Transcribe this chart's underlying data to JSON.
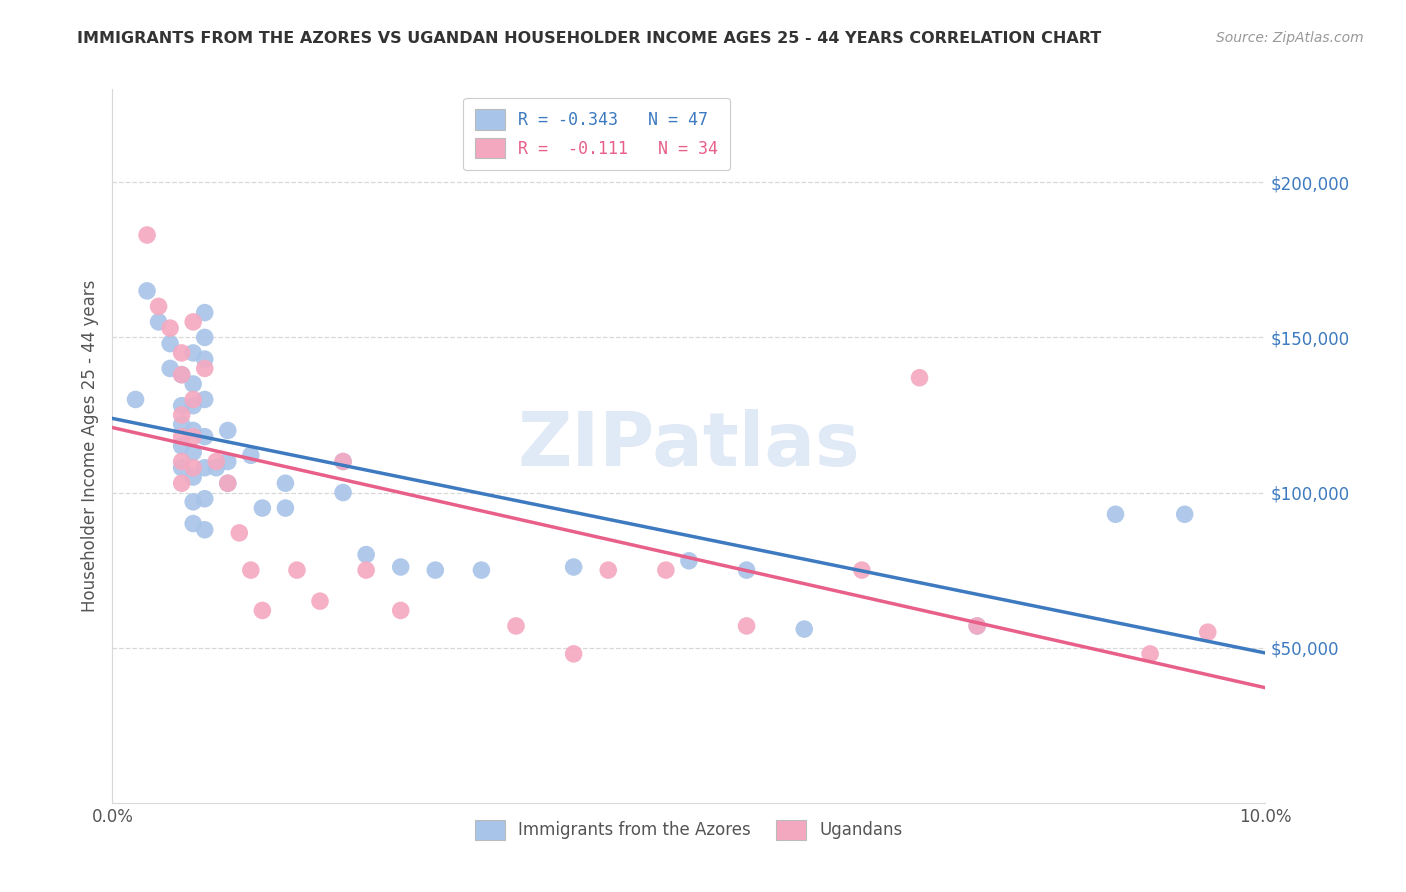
{
  "title": "IMMIGRANTS FROM THE AZORES VS UGANDAN HOUSEHOLDER INCOME AGES 25 - 44 YEARS CORRELATION CHART",
  "source": "Source: ZipAtlas.com",
  "ylabel": "Householder Income Ages 25 - 44 years",
  "xlim": [
    0,
    0.1
  ],
  "ylim": [
    0,
    230000
  ],
  "yticks_right": [
    50000,
    100000,
    150000,
    200000
  ],
  "ytick_labels_right": [
    "$50,000",
    "$100,000",
    "$150,000",
    "$200,000"
  ],
  "legend_blue_label": "R = -0.343   N = 47",
  "legend_pink_label": "R =  -0.111   N = 34",
  "watermark": "ZIPatlas",
  "blue_color": "#a8c4e8",
  "pink_color": "#f4a8c0",
  "blue_line_color": "#3d7abf",
  "pink_line_color": "#e8608a",
  "title_color": "#333333",
  "source_color": "#999999",
  "label_color": "#555555",
  "grid_color": "#d8d8d8",
  "blue_scatter": [
    [
      0.002,
      130000
    ],
    [
      0.003,
      165000
    ],
    [
      0.004,
      155000
    ],
    [
      0.005,
      148000
    ],
    [
      0.005,
      140000
    ],
    [
      0.006,
      138000
    ],
    [
      0.006,
      128000
    ],
    [
      0.006,
      122000
    ],
    [
      0.006,
      115000
    ],
    [
      0.006,
      108000
    ],
    [
      0.007,
      145000
    ],
    [
      0.007,
      135000
    ],
    [
      0.007,
      128000
    ],
    [
      0.007,
      120000
    ],
    [
      0.007,
      113000
    ],
    [
      0.007,
      105000
    ],
    [
      0.007,
      97000
    ],
    [
      0.007,
      90000
    ],
    [
      0.008,
      158000
    ],
    [
      0.008,
      150000
    ],
    [
      0.008,
      143000
    ],
    [
      0.008,
      130000
    ],
    [
      0.008,
      118000
    ],
    [
      0.008,
      108000
    ],
    [
      0.008,
      98000
    ],
    [
      0.008,
      88000
    ],
    [
      0.009,
      108000
    ],
    [
      0.01,
      120000
    ],
    [
      0.01,
      110000
    ],
    [
      0.01,
      103000
    ],
    [
      0.012,
      112000
    ],
    [
      0.013,
      95000
    ],
    [
      0.015,
      103000
    ],
    [
      0.015,
      95000
    ],
    [
      0.02,
      110000
    ],
    [
      0.02,
      100000
    ],
    [
      0.022,
      80000
    ],
    [
      0.025,
      76000
    ],
    [
      0.028,
      75000
    ],
    [
      0.032,
      75000
    ],
    [
      0.04,
      76000
    ],
    [
      0.05,
      78000
    ],
    [
      0.055,
      75000
    ],
    [
      0.06,
      56000
    ],
    [
      0.075,
      57000
    ],
    [
      0.087,
      93000
    ],
    [
      0.093,
      93000
    ]
  ],
  "pink_scatter": [
    [
      0.003,
      183000
    ],
    [
      0.004,
      160000
    ],
    [
      0.005,
      153000
    ],
    [
      0.006,
      145000
    ],
    [
      0.006,
      138000
    ],
    [
      0.006,
      125000
    ],
    [
      0.006,
      118000
    ],
    [
      0.006,
      110000
    ],
    [
      0.006,
      103000
    ],
    [
      0.007,
      155000
    ],
    [
      0.007,
      130000
    ],
    [
      0.007,
      118000
    ],
    [
      0.007,
      108000
    ],
    [
      0.008,
      140000
    ],
    [
      0.009,
      110000
    ],
    [
      0.01,
      103000
    ],
    [
      0.011,
      87000
    ],
    [
      0.012,
      75000
    ],
    [
      0.013,
      62000
    ],
    [
      0.016,
      75000
    ],
    [
      0.018,
      65000
    ],
    [
      0.02,
      110000
    ],
    [
      0.022,
      75000
    ],
    [
      0.025,
      62000
    ],
    [
      0.035,
      57000
    ],
    [
      0.04,
      48000
    ],
    [
      0.043,
      75000
    ],
    [
      0.048,
      75000
    ],
    [
      0.055,
      57000
    ],
    [
      0.065,
      75000
    ],
    [
      0.07,
      137000
    ],
    [
      0.075,
      57000
    ],
    [
      0.09,
      48000
    ],
    [
      0.095,
      55000
    ]
  ]
}
